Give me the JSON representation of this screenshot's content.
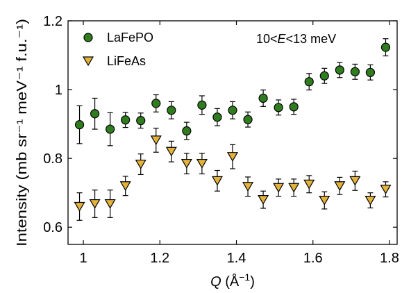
{
  "chart_data": {
    "type": "scatter",
    "xlabel": {
      "italic": "Q",
      "rest": " (Å",
      "sup": "−1",
      "close": ")"
    },
    "ylabel": "Intensity (mb sr⁻¹ meV⁻¹ f.u.⁻¹)",
    "xlim": [
      0.96,
      1.82
    ],
    "ylim": [
      0.55,
      1.2
    ],
    "xticks": [
      1,
      1.2,
      1.4,
      1.6,
      1.8
    ],
    "xtick_labels": [
      "1",
      "1.2",
      "1.4",
      "1.6",
      "1.8"
    ],
    "yticks": [
      0.6,
      0.8,
      1.0,
      1.2
    ],
    "ytick_labels": [
      "0.6",
      "0.8",
      "1",
      "1.2"
    ],
    "annotation": {
      "pre": "10<",
      "italic": "E",
      "post": "<13 meV"
    },
    "legend_placement": "top-left",
    "series": [
      {
        "name": "LaFePO",
        "marker": "circle",
        "color": "#2f7d1f",
        "x": [
          0.99,
          1.03,
          1.07,
          1.11,
          1.15,
          1.19,
          1.23,
          1.27,
          1.31,
          1.35,
          1.39,
          1.43,
          1.47,
          1.51,
          1.55,
          1.59,
          1.63,
          1.67,
          1.71,
          1.75,
          1.79
        ],
        "y": [
          0.898,
          0.93,
          0.885,
          0.912,
          0.91,
          0.96,
          0.94,
          0.88,
          0.955,
          0.92,
          0.94,
          0.913,
          0.975,
          0.948,
          0.95,
          1.023,
          1.04,
          1.057,
          1.052,
          1.05,
          1.123
        ],
        "err": [
          0.055,
          0.045,
          0.048,
          0.022,
          0.022,
          0.025,
          0.025,
          0.025,
          0.027,
          0.025,
          0.025,
          0.022,
          0.024,
          0.022,
          0.022,
          0.024,
          0.022,
          0.022,
          0.022,
          0.022,
          0.025
        ]
      },
      {
        "name": "LiFeAs",
        "marker": "triangle-down",
        "color": "#e3b23c",
        "x": [
          0.99,
          1.03,
          1.07,
          1.11,
          1.15,
          1.19,
          1.23,
          1.27,
          1.31,
          1.35,
          1.39,
          1.43,
          1.47,
          1.51,
          1.55,
          1.59,
          1.63,
          1.67,
          1.71,
          1.75,
          1.79
        ],
        "y": [
          0.66,
          0.668,
          0.668,
          0.72,
          0.783,
          0.853,
          0.82,
          0.785,
          0.785,
          0.735,
          0.805,
          0.718,
          0.68,
          0.715,
          0.715,
          0.725,
          0.678,
          0.72,
          0.735,
          0.678,
          0.71
        ],
        "err": [
          0.04,
          0.04,
          0.04,
          0.028,
          0.03,
          0.035,
          0.03,
          0.03,
          0.03,
          0.03,
          0.035,
          0.028,
          0.025,
          0.025,
          0.025,
          0.025,
          0.025,
          0.025,
          0.028,
          0.022,
          0.022
        ]
      }
    ]
  }
}
